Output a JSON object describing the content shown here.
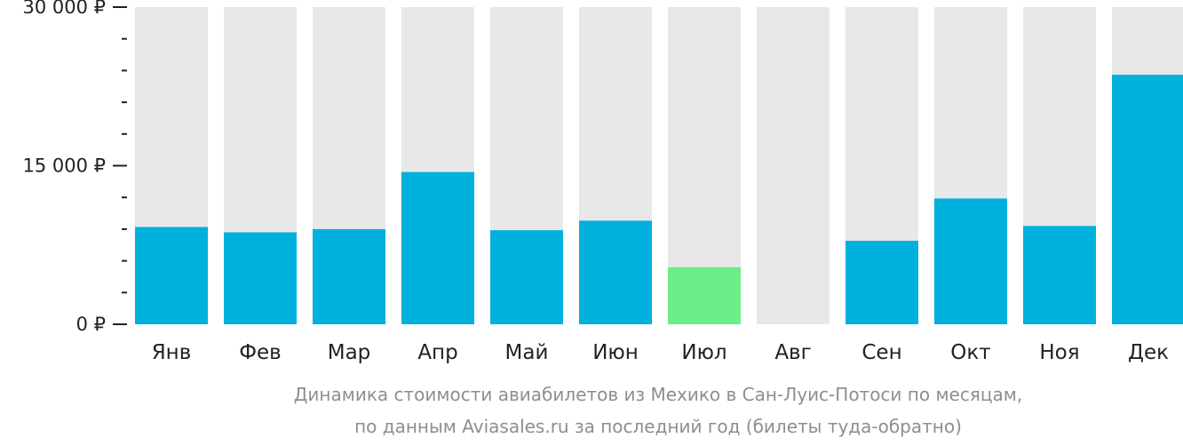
{
  "chart_data": {
    "type": "bar",
    "categories": [
      "Янв",
      "Фев",
      "Мар",
      "Апр",
      "Май",
      "Июн",
      "Июл",
      "Авг",
      "Сен",
      "Окт",
      "Ноя",
      "Дек"
    ],
    "values": [
      9200,
      8700,
      9000,
      14400,
      8900,
      9800,
      5400,
      null,
      7900,
      11900,
      9300,
      23600
    ],
    "highlight_index": 6,
    "ylim": [
      0,
      30000
    ],
    "yticks": [
      {
        "value": 0,
        "label": "0 ₽"
      },
      {
        "value": 15000,
        "label": "15 000 ₽"
      },
      {
        "value": 30000,
        "label": "30 000 ₽"
      }
    ],
    "minor_tick_step": 3000,
    "grid": false,
    "colors": {
      "bar": "#00b0dd",
      "highlight": "#6bee87",
      "background_bar": "#e8e8e8",
      "axis": "#222222"
    }
  },
  "caption": {
    "line1": "Динамика стоимости авиабилетов из Мехико в Сан-Луис-Потоси по месяцам,",
    "line2": "по данным Aviasales.ru за последний год (билеты туда-обратно)"
  }
}
